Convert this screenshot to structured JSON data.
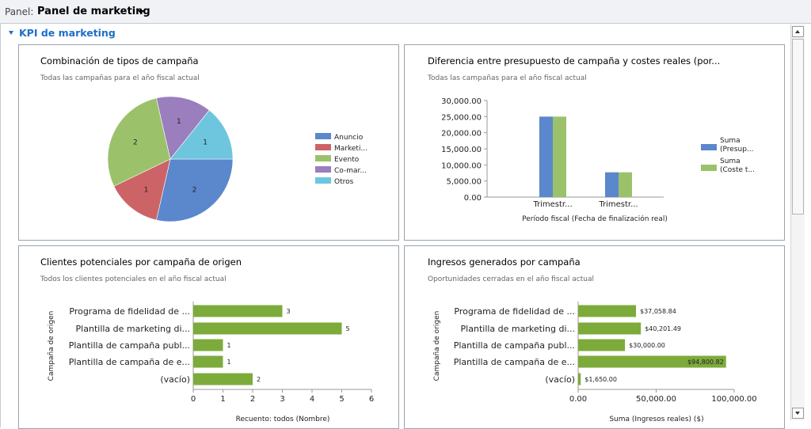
{
  "topbar": {
    "label": "Panel:",
    "value": "Panel de marketing"
  },
  "section": {
    "title": "KPI de marketing"
  },
  "colors": {
    "blue": "#5b87cc",
    "red": "#cc6367",
    "green": "#9bc26b",
    "purple": "#9a7ebd",
    "cyan": "#6ec6de",
    "hbar": "#7dab3b"
  },
  "charts": {
    "pie": {
      "title": "Combinación de tipos de campaña",
      "subtitle": "Todas las campañas para el año fiscal actual",
      "legend": [
        "Anuncio",
        "Marketi...",
        "Evento",
        "Co-mar...",
        "Otros"
      ],
      "slice_labels": [
        "2",
        "1",
        "2",
        "1",
        "1"
      ]
    },
    "bar": {
      "title": "Diferencia entre presupuesto de campaña y costes reales (por...",
      "subtitle": "Todas las campañas para el año fiscal actual",
      "yticks": [
        "30,000.00",
        "25,000.00",
        "20,000.00",
        "15,000.00",
        "10,000.00",
        "5,000.00",
        "0.00"
      ],
      "categories": [
        "Trimestr...",
        "Trimestr..."
      ],
      "xlabel": "Período fiscal (Fecha de finalización real)",
      "legend": [
        {
          "line1": "Suma",
          "line2": "(Presup..."
        },
        {
          "line1": "Suma",
          "line2": "(Coste t..."
        }
      ]
    },
    "leads": {
      "title": "Clientes potenciales por campaña de origen",
      "subtitle": "Todos los clientes potenciales en el año fiscal actual",
      "ylabel": "Campaña de origen",
      "xlabel": "Recuento: todos (Nombre)",
      "categories": [
        "Programa de fidelidad de ...",
        "Plantilla de marketing di...",
        "Plantilla de campaña publ...",
        "Plantilla de campaña de e...",
        "(vacío)"
      ],
      "value_labels": [
        "3",
        "5",
        "1",
        "1",
        "2"
      ],
      "xticks": [
        "0",
        "1",
        "2",
        "3",
        "4",
        "5",
        "6"
      ]
    },
    "revenue": {
      "title": "Ingresos generados por campaña",
      "subtitle": "Oportunidades cerradas en el año fiscal actual",
      "ylabel": "Campaña de origen",
      "xlabel": "Suma (Ingresos reales) ($)",
      "categories": [
        "Programa de fidelidad de ...",
        "Plantilla de marketing di...",
        "Plantilla de campaña publ...",
        "Plantilla de campaña de e...",
        "(vacío)"
      ],
      "value_labels": [
        "$37,058.84",
        "$40,201.49",
        "$30,000.00",
        "$94,800.82",
        "$1,650.00"
      ],
      "xticks": [
        "0.00",
        "50,000.00",
        "100,000.00"
      ]
    }
  },
  "chart_data": [
    {
      "type": "pie",
      "title": "Combinación de tipos de campaña",
      "categories": [
        "Anuncio",
        "Marketi...",
        "Evento",
        "Co-mar...",
        "Otros"
      ],
      "values": [
        2,
        1,
        2,
        1,
        1
      ]
    },
    {
      "type": "bar",
      "title": "Diferencia entre presupuesto de campaña y costes reales (por...",
      "categories": [
        "Trimestr...",
        "Trimestr..."
      ],
      "series": [
        {
          "name": "Suma (Presup...",
          "values": [
            25000,
            7700
          ]
        },
        {
          "name": "Suma (Coste t...",
          "values": [
            25000,
            7700
          ]
        }
      ],
      "ylim": [
        0,
        30000
      ],
      "xlabel": "Período fiscal (Fecha de finalización real)"
    },
    {
      "type": "bar",
      "orientation": "horizontal",
      "title": "Clientes potenciales por campaña de origen",
      "categories": [
        "Programa de fidelidad de ...",
        "Plantilla de marketing di...",
        "Plantilla de campaña publ...",
        "Plantilla de campaña de e...",
        "(vacío)"
      ],
      "values": [
        3,
        5,
        1,
        1,
        2
      ],
      "xlim": [
        0,
        6
      ],
      "xlabel": "Recuento: todos (Nombre)",
      "ylabel": "Campaña de origen"
    },
    {
      "type": "bar",
      "orientation": "horizontal",
      "title": "Ingresos generados por campaña",
      "categories": [
        "Programa de fidelidad de ...",
        "Plantilla de marketing di...",
        "Plantilla de campaña publ...",
        "Plantilla de campaña de e...",
        "(vacío)"
      ],
      "values": [
        37058.84,
        40201.49,
        30000.0,
        94800.82,
        1650.0
      ],
      "xlim": [
        0,
        100000
      ],
      "xlabel": "Suma (Ingresos reales) ($)",
      "ylabel": "Campaña de origen"
    }
  ]
}
